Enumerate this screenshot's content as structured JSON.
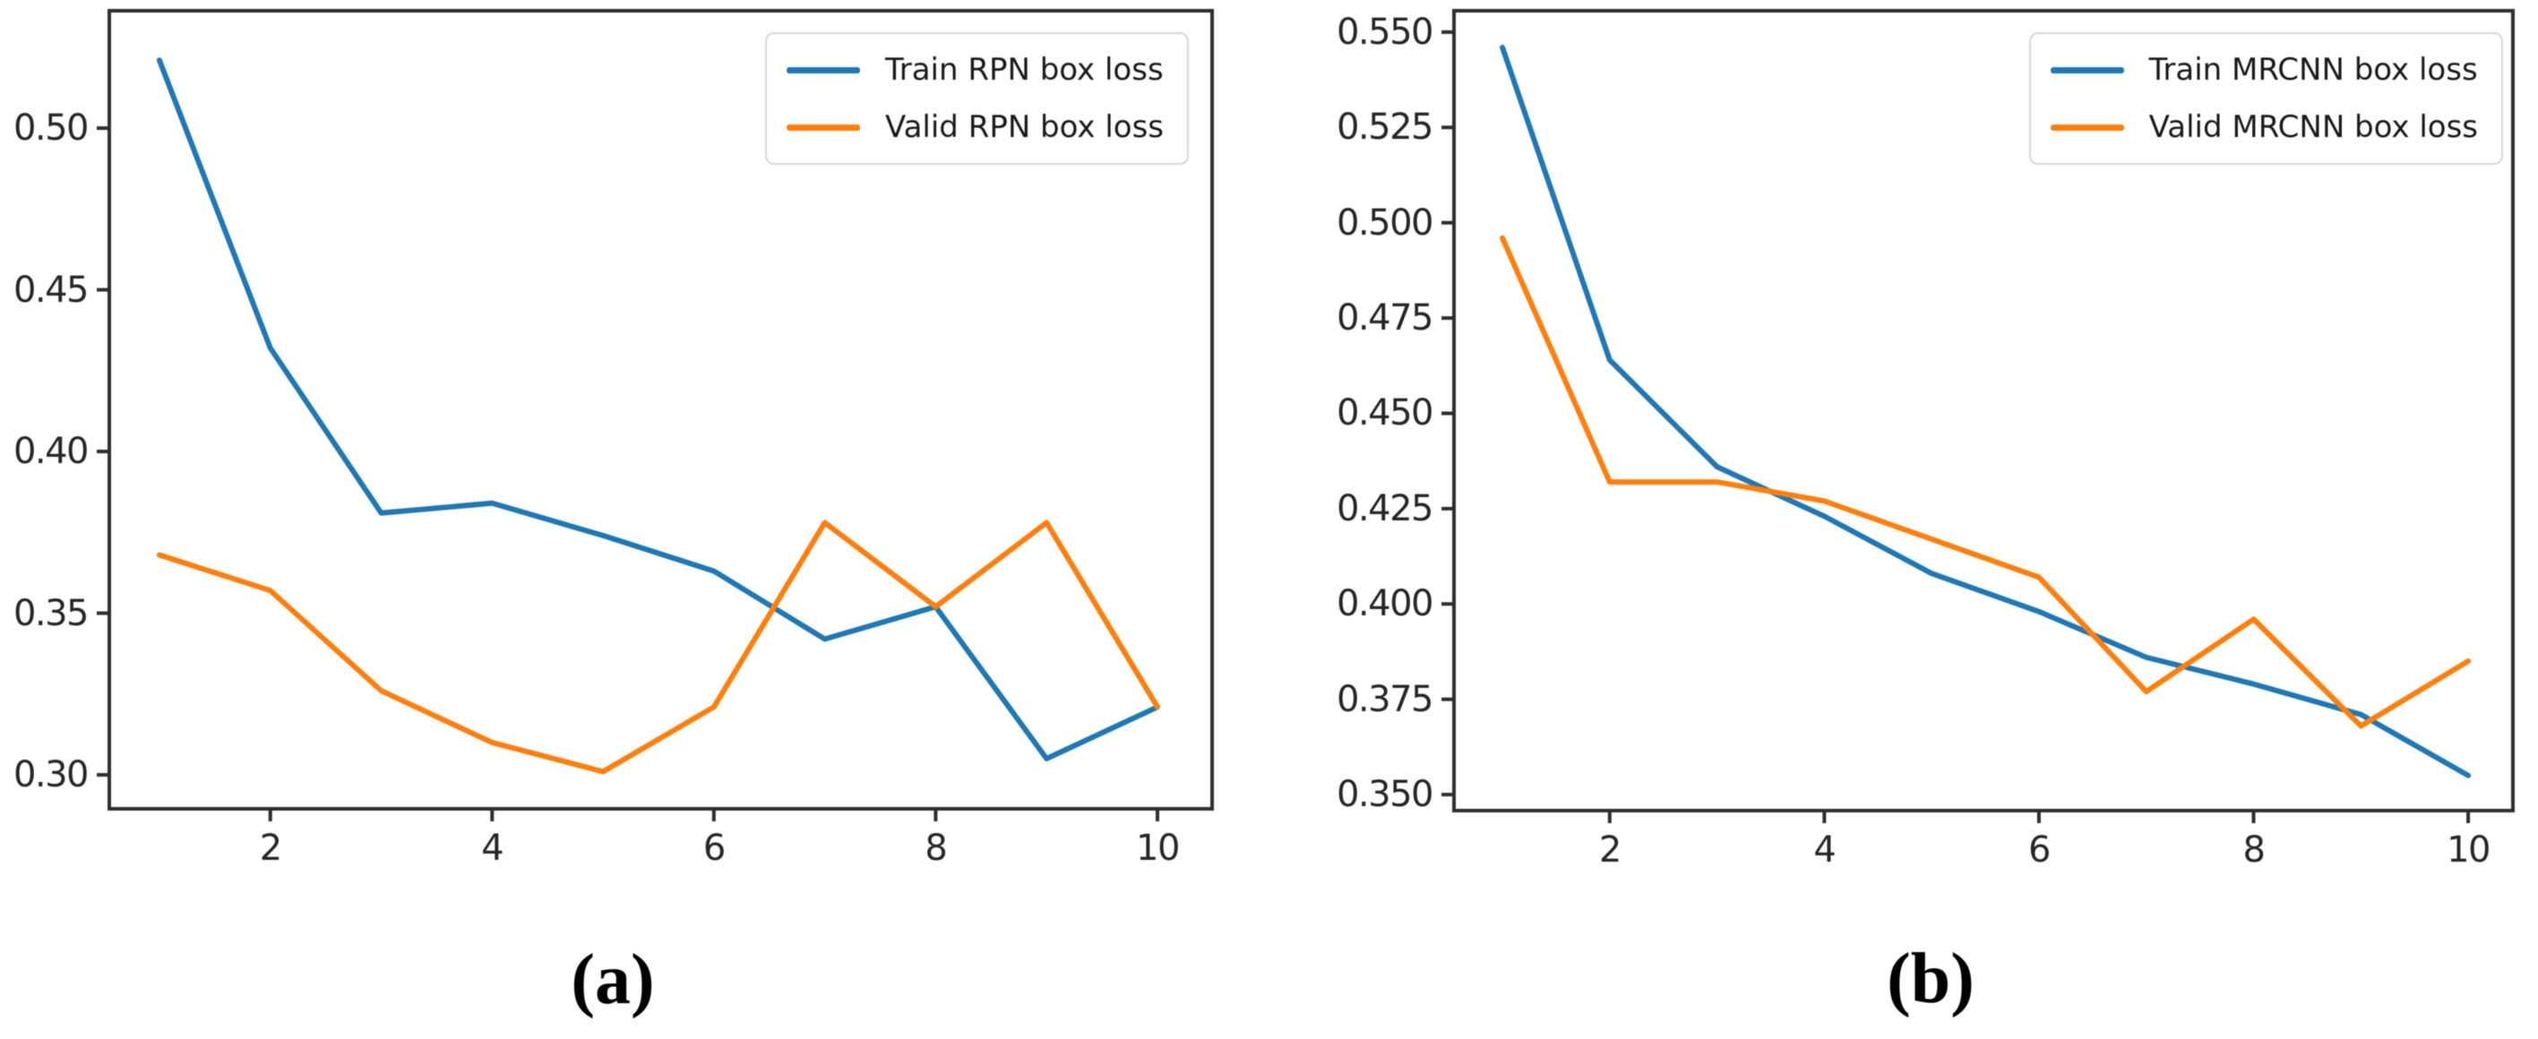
{
  "figure": {
    "background": "#ffffff"
  },
  "colors": {
    "train_line": "#1f77b4",
    "valid_line": "#ff7f0e",
    "axis": "#2e2e2e",
    "tick_text": "#262626",
    "legend_border": "#d8d8d8"
  },
  "chart_data": [
    {
      "id": "a",
      "type": "line",
      "caption": "(a)",
      "x": [
        1,
        2,
        3,
        4,
        5,
        6,
        7,
        8,
        9,
        10
      ],
      "series": [
        {
          "name": "Train RPN box loss",
          "color": "#1f77b4",
          "values": [
            0.521,
            0.432,
            0.381,
            0.384,
            0.374,
            0.363,
            0.342,
            0.352,
            0.305,
            0.321
          ]
        },
        {
          "name": "Valid RPN box loss",
          "color": "#ff7f0e",
          "values": [
            0.368,
            0.357,
            0.326,
            0.31,
            0.301,
            0.321,
            0.378,
            0.352,
            0.378,
            0.321
          ]
        }
      ],
      "xlim": [
        0.548,
        10.493
      ],
      "ylim": [
        0.2895,
        0.5363
      ],
      "xtick_values": [
        2,
        4,
        6,
        8,
        10
      ],
      "xtick_labels": [
        "2",
        "4",
        "6",
        "8",
        "10"
      ],
      "ytick_values": [
        0.5,
        0.45,
        0.4,
        0.35,
        0.3
      ],
      "ytick_labels": [
        "0.50",
        "0.45",
        "0.40",
        "0.35",
        "0.30"
      ],
      "legend_position": "upper right",
      "grid": false
    },
    {
      "id": "b",
      "type": "line",
      "caption": "(b)",
      "x": [
        1,
        2,
        3,
        4,
        5,
        6,
        7,
        8,
        9,
        10
      ],
      "series": [
        {
          "name": "Train MRCNN box loss",
          "color": "#1f77b4",
          "values": [
            0.546,
            0.464,
            0.436,
            0.423,
            0.408,
            0.398,
            0.386,
            0.379,
            0.371,
            0.355
          ]
        },
        {
          "name": "Valid MRCNN box loss",
          "color": "#ff7f0e",
          "values": [
            0.496,
            0.432,
            0.432,
            0.427,
            0.417,
            0.407,
            0.377,
            0.396,
            0.368,
            0.385
          ]
        }
      ],
      "xlim": [
        0.549,
        10.417
      ],
      "ylim": [
        0.3458,
        0.5556
      ],
      "xtick_values": [
        2,
        4,
        6,
        8,
        10
      ],
      "xtick_labels": [
        "2",
        "4",
        "6",
        "8",
        "10"
      ],
      "ytick_values": [
        0.55,
        0.525,
        0.5,
        0.475,
        0.45,
        0.425,
        0.4,
        0.375,
        0.35
      ],
      "ytick_labels": [
        "0.550",
        "0.525",
        "0.500",
        "0.475",
        "0.450",
        "0.425",
        "0.400",
        "0.375",
        "0.350"
      ],
      "legend_position": "upper right",
      "grid": false
    }
  ]
}
